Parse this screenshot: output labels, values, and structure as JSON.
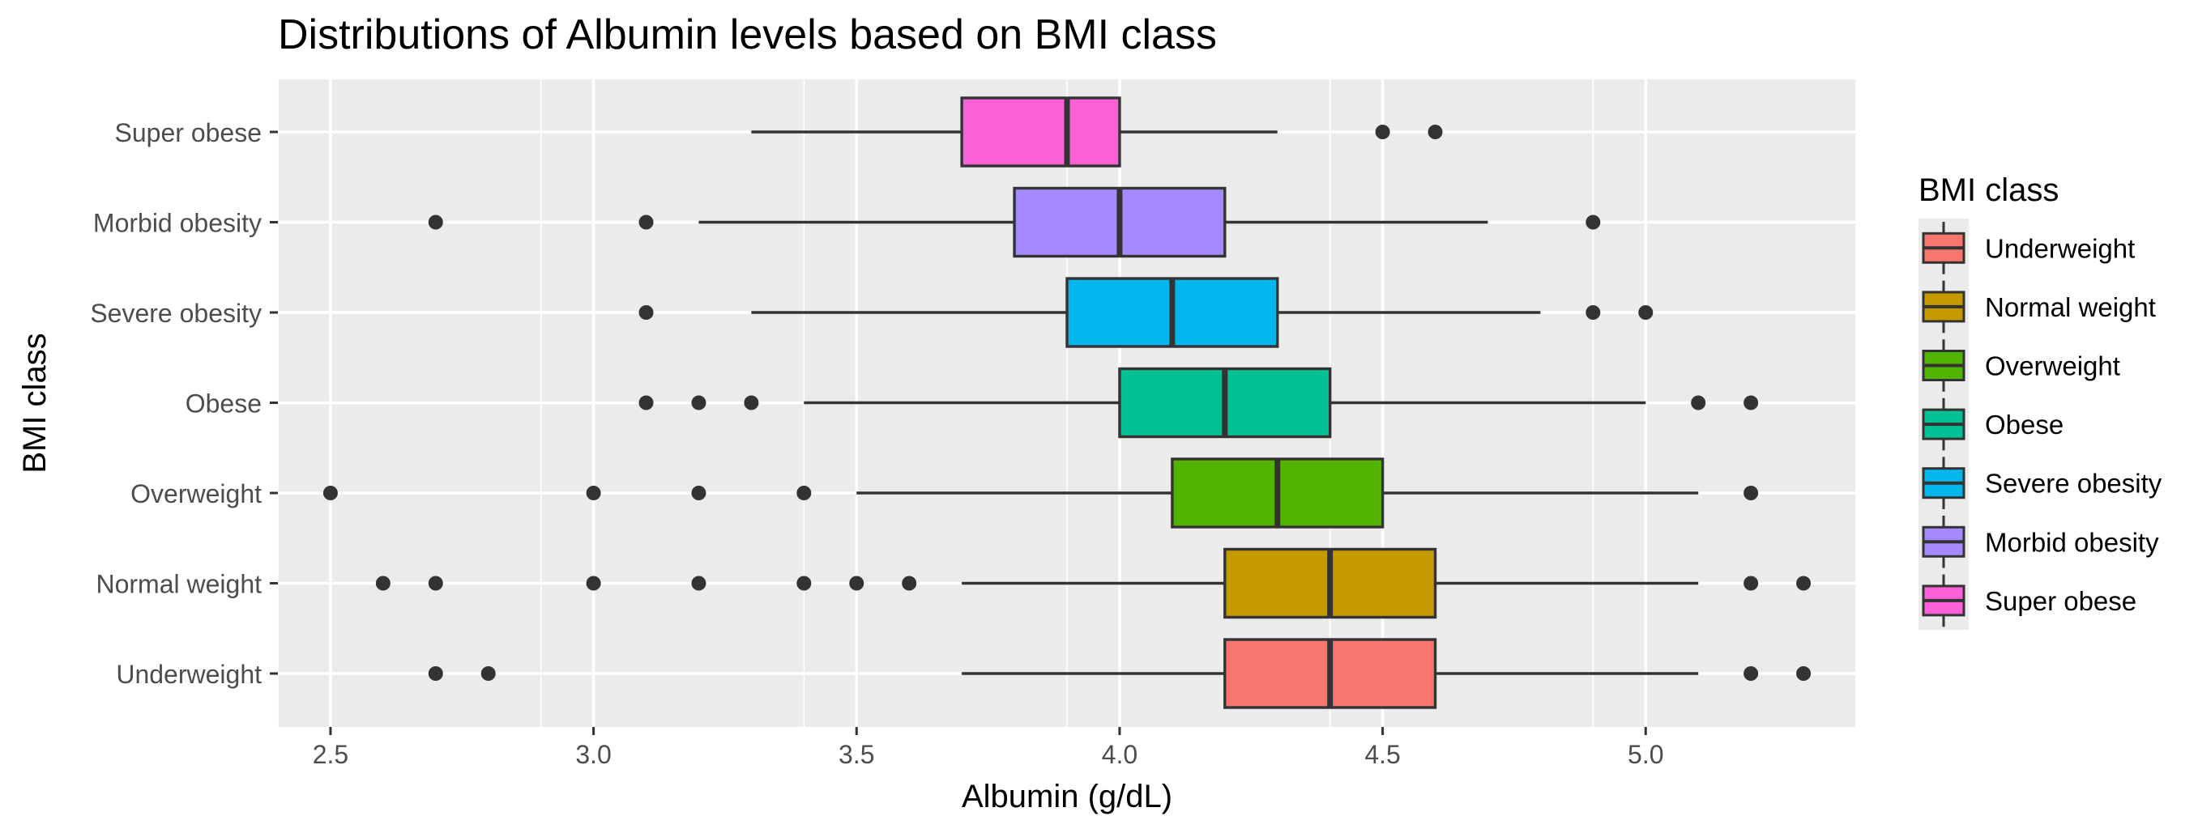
{
  "chart_data": {
    "type": "boxplot",
    "orientation": "horizontal",
    "title": "Distributions of Albumin levels based on BMI class",
    "xlabel": "Albumin (g/dL)",
    "ylabel": "BMI class",
    "xlim": [
      2.4,
      5.4
    ],
    "x_ticks": [
      "2.5",
      "3.0",
      "3.5",
      "4.0",
      "4.5",
      "5.0"
    ],
    "grid": true,
    "legend": {
      "title": "BMI class",
      "placement": "right",
      "items": [
        "Underweight",
        "Normal weight",
        "Overweight",
        "Obese",
        "Severe obesity",
        "Morbid obesity",
        "Super obese"
      ]
    },
    "categories": [
      "Underweight",
      "Normal weight",
      "Overweight",
      "Obese",
      "Severe obesity",
      "Morbid obesity",
      "Super obese"
    ],
    "series": [
      {
        "name": "Underweight",
        "color": "#F8766D",
        "whisker_low": 3.7,
        "q1": 4.2,
        "median": 4.4,
        "q3": 4.6,
        "whisker_high": 5.1,
        "outliers": [
          2.7,
          2.8,
          5.2,
          5.3
        ]
      },
      {
        "name": "Normal weight",
        "color": "#C49A00",
        "whisker_low": 3.7,
        "q1": 4.2,
        "median": 4.4,
        "q3": 4.6,
        "whisker_high": 5.1,
        "outliers": [
          2.6,
          2.7,
          3.0,
          3.2,
          3.4,
          3.5,
          3.6,
          5.2,
          5.3
        ]
      },
      {
        "name": "Overweight",
        "color": "#53B400",
        "whisker_low": 3.5,
        "q1": 4.1,
        "median": 4.3,
        "q3": 4.5,
        "whisker_high": 5.1,
        "outliers": [
          2.5,
          3.0,
          3.2,
          3.4,
          5.2
        ]
      },
      {
        "name": "Obese",
        "color": "#00C094",
        "whisker_low": 3.4,
        "q1": 4.0,
        "median": 4.2,
        "q3": 4.4,
        "whisker_high": 5.0,
        "outliers": [
          3.1,
          3.2,
          3.3,
          5.1,
          5.2
        ]
      },
      {
        "name": "Severe obesity",
        "color": "#00B6EB",
        "whisker_low": 3.3,
        "q1": 3.9,
        "median": 4.1,
        "q3": 4.3,
        "whisker_high": 4.8,
        "outliers": [
          3.1,
          4.9,
          5.0
        ]
      },
      {
        "name": "Morbid obesity",
        "color": "#A58AFF",
        "whisker_low": 3.2,
        "q1": 3.8,
        "median": 4.0,
        "q3": 4.2,
        "whisker_high": 4.7,
        "outliers": [
          2.7,
          3.1,
          4.9
        ]
      },
      {
        "name": "Super obese",
        "color": "#FB61D7",
        "whisker_low": 3.3,
        "q1": 3.7,
        "median": 3.9,
        "q3": 4.0,
        "whisker_high": 4.3,
        "outliers": [
          4.5,
          4.6
        ]
      }
    ]
  }
}
